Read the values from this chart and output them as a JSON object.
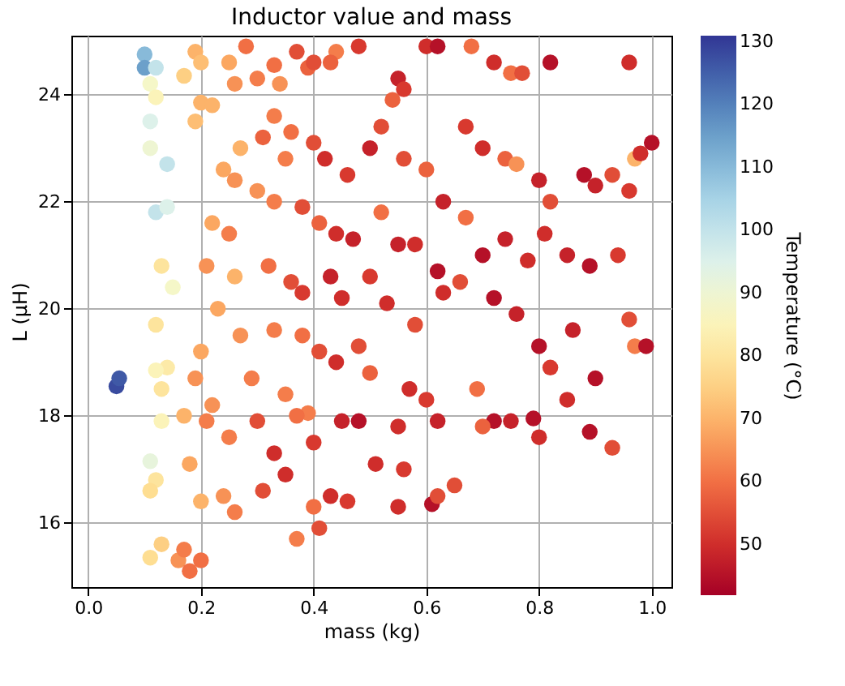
{
  "chart_data": {
    "type": "scatter",
    "title": "Inductor value and mass",
    "xlabel": "mass (kg)",
    "ylabel": "L (μH)",
    "clabel": "Temperature (°C)",
    "xlim": [
      -0.03,
      1.035
    ],
    "ylim": [
      14.8,
      25.1
    ],
    "xticks": [
      {
        "value": 0,
        "label": "0.0"
      },
      {
        "value": 0.2,
        "label": "0.2"
      },
      {
        "value": 0.4,
        "label": "0.4"
      },
      {
        "value": 0.6,
        "label": "0.6"
      },
      {
        "value": 0.8,
        "label": "0.8"
      },
      {
        "value": 1,
        "label": "1.0"
      }
    ],
    "yticks": [
      16,
      18,
      20,
      22,
      24
    ],
    "clim": [
      42,
      131
    ],
    "cticks": [
      50,
      60,
      70,
      80,
      90,
      100,
      110,
      120,
      130
    ],
    "grid": true,
    "marker": "circle",
    "x": [
      0.05,
      0.055,
      0.1,
      0.1,
      0.12,
      0.11,
      0.12,
      0.11,
      0.11,
      0.12,
      0.14,
      0.14,
      0.13,
      0.15,
      0.12,
      0.14,
      0.12,
      0.13,
      0.13,
      0.11,
      0.12,
      0.11,
      0.11,
      0.13,
      0.19,
      0.2,
      0.17,
      0.2,
      0.19,
      0.25,
      0.26,
      0.22,
      0.27,
      0.24,
      0.26,
      0.22,
      0.25,
      0.21,
      0.26,
      0.23,
      0.27,
      0.2,
      0.19,
      0.22,
      0.17,
      0.21,
      0.25,
      0.18,
      0.2,
      0.24,
      0.26,
      0.16,
      0.18,
      0.17,
      0.2,
      0.28,
      0.3,
      0.33,
      0.34,
      0.37,
      0.39,
      0.4,
      0.44,
      0.43,
      0.33,
      0.31,
      0.36,
      0.35,
      0.4,
      0.42,
      0.46,
      0.3,
      0.33,
      0.38,
      0.41,
      0.44,
      0.47,
      0.32,
      0.36,
      0.38,
      0.43,
      0.45,
      0.33,
      0.38,
      0.41,
      0.44,
      0.29,
      0.35,
      0.39,
      0.37,
      0.3,
      0.33,
      0.4,
      0.45,
      0.31,
      0.35,
      0.4,
      0.43,
      0.37,
      0.41,
      0.48,
      0.55,
      0.56,
      0.54,
      0.6,
      0.62,
      0.68,
      0.52,
      0.5,
      0.56,
      0.6,
      0.63,
      0.52,
      0.55,
      0.58,
      0.62,
      0.5,
      0.53,
      0.58,
      0.63,
      0.48,
      0.5,
      0.57,
      0.6,
      0.48,
      0.55,
      0.62,
      0.51,
      0.56,
      0.46,
      0.55,
      0.61,
      0.62,
      0.72,
      0.75,
      0.77,
      0.82,
      0.96,
      0.67,
      0.7,
      0.74,
      0.76,
      0.8,
      0.82,
      0.88,
      0.9,
      0.93,
      0.97,
      1.0,
      0.98,
      0.96,
      0.67,
      0.7,
      0.74,
      0.78,
      0.81,
      0.85,
      0.89,
      0.94,
      0.66,
      0.72,
      0.76,
      0.8,
      0.82,
      0.86,
      0.9,
      0.96,
      0.97,
      0.99,
      0.69,
      0.72,
      0.75,
      0.79,
      0.8,
      0.85,
      0.89,
      0.93,
      0.65,
      0.7
    ],
    "values": [
      18.55,
      18.7,
      24.75,
      24.5,
      24.5,
      24.2,
      23.95,
      23.5,
      23.0,
      21.8,
      22.7,
      21.9,
      20.8,
      20.4,
      19.7,
      18.9,
      18.85,
      18.5,
      17.9,
      17.15,
      16.8,
      16.6,
      15.35,
      15.6,
      24.8,
      24.6,
      24.35,
      23.85,
      23.5,
      24.6,
      24.2,
      23.8,
      23.0,
      22.6,
      22.4,
      21.6,
      21.4,
      20.8,
      20.6,
      20.0,
      19.5,
      19.2,
      18.7,
      18.2,
      18.0,
      17.9,
      17.6,
      17.1,
      16.4,
      16.5,
      16.2,
      15.3,
      15.1,
      15.5,
      15.3,
      24.9,
      24.3,
      24.55,
      24.2,
      24.8,
      24.5,
      24.6,
      24.8,
      24.6,
      23.6,
      23.2,
      23.3,
      22.8,
      23.1,
      22.8,
      22.5,
      22.2,
      22.0,
      21.9,
      21.6,
      21.4,
      21.3,
      20.8,
      20.5,
      20.3,
      20.6,
      20.2,
      19.6,
      19.5,
      19.2,
      19.0,
      18.7,
      18.4,
      18.05,
      18.0,
      17.9,
      17.3,
      17.5,
      17.9,
      16.6,
      16.9,
      16.3,
      16.5,
      15.7,
      15.9,
      24.9,
      24.3,
      24.1,
      23.9,
      24.9,
      24.9,
      24.9,
      23.4,
      23.0,
      22.8,
      22.6,
      22.0,
      21.8,
      21.2,
      21.2,
      20.7,
      20.6,
      20.1,
      19.7,
      20.3,
      19.3,
      18.8,
      18.5,
      18.3,
      17.9,
      17.8,
      17.9,
      17.1,
      17.0,
      16.4,
      16.3,
      16.35,
      16.5,
      24.6,
      24.4,
      24.4,
      24.6,
      24.6,
      23.4,
      23.0,
      22.8,
      22.7,
      22.4,
      22.0,
      22.5,
      22.3,
      22.5,
      22.8,
      23.1,
      22.9,
      22.2,
      21.7,
      21.0,
      21.3,
      20.9,
      21.4,
      21.0,
      20.8,
      21.0,
      20.5,
      20.2,
      19.9,
      19.3,
      18.9,
      19.6,
      18.7,
      19.8,
      19.3,
      19.3,
      18.5,
      17.9,
      17.9,
      17.95,
      17.6,
      18.3,
      17.7,
      17.4,
      16.7,
      17.8
    ],
    "cvalues": [
      128,
      126,
      110,
      115,
      100,
      88,
      85,
      95,
      90,
      100,
      100,
      95,
      80,
      88,
      80,
      82,
      85,
      80,
      85,
      92,
      80,
      78,
      78,
      75,
      70,
      72,
      75,
      70,
      72,
      68,
      65,
      70,
      70,
      68,
      65,
      68,
      62,
      65,
      70,
      68,
      65,
      68,
      65,
      65,
      70,
      62,
      62,
      68,
      70,
      65,
      62,
      65,
      60,
      62,
      60,
      60,
      62,
      60,
      65,
      55,
      58,
      55,
      62,
      58,
      62,
      58,
      60,
      62,
      55,
      50,
      52,
      65,
      62,
      55,
      58,
      50,
      48,
      60,
      55,
      52,
      48,
      50,
      62,
      60,
      55,
      50,
      62,
      62,
      62,
      60,
      55,
      50,
      52,
      48,
      55,
      50,
      60,
      50,
      62,
      55,
      52,
      48,
      52,
      58,
      50,
      45,
      60,
      55,
      48,
      55,
      58,
      48,
      60,
      48,
      50,
      45,
      52,
      50,
      55,
      50,
      55,
      58,
      50,
      52,
      45,
      50,
      48,
      50,
      52,
      52,
      50,
      45,
      55,
      50,
      60,
      55,
      45,
      50,
      52,
      50,
      58,
      65,
      48,
      55,
      45,
      48,
      55,
      70,
      45,
      50,
      52,
      60,
      45,
      48,
      50,
      50,
      48,
      45,
      52,
      55,
      45,
      48,
      45,
      52,
      48,
      45,
      55,
      62,
      45,
      60,
      45,
      48,
      45,
      50,
      50,
      45,
      55,
      55,
      58
    ]
  }
}
